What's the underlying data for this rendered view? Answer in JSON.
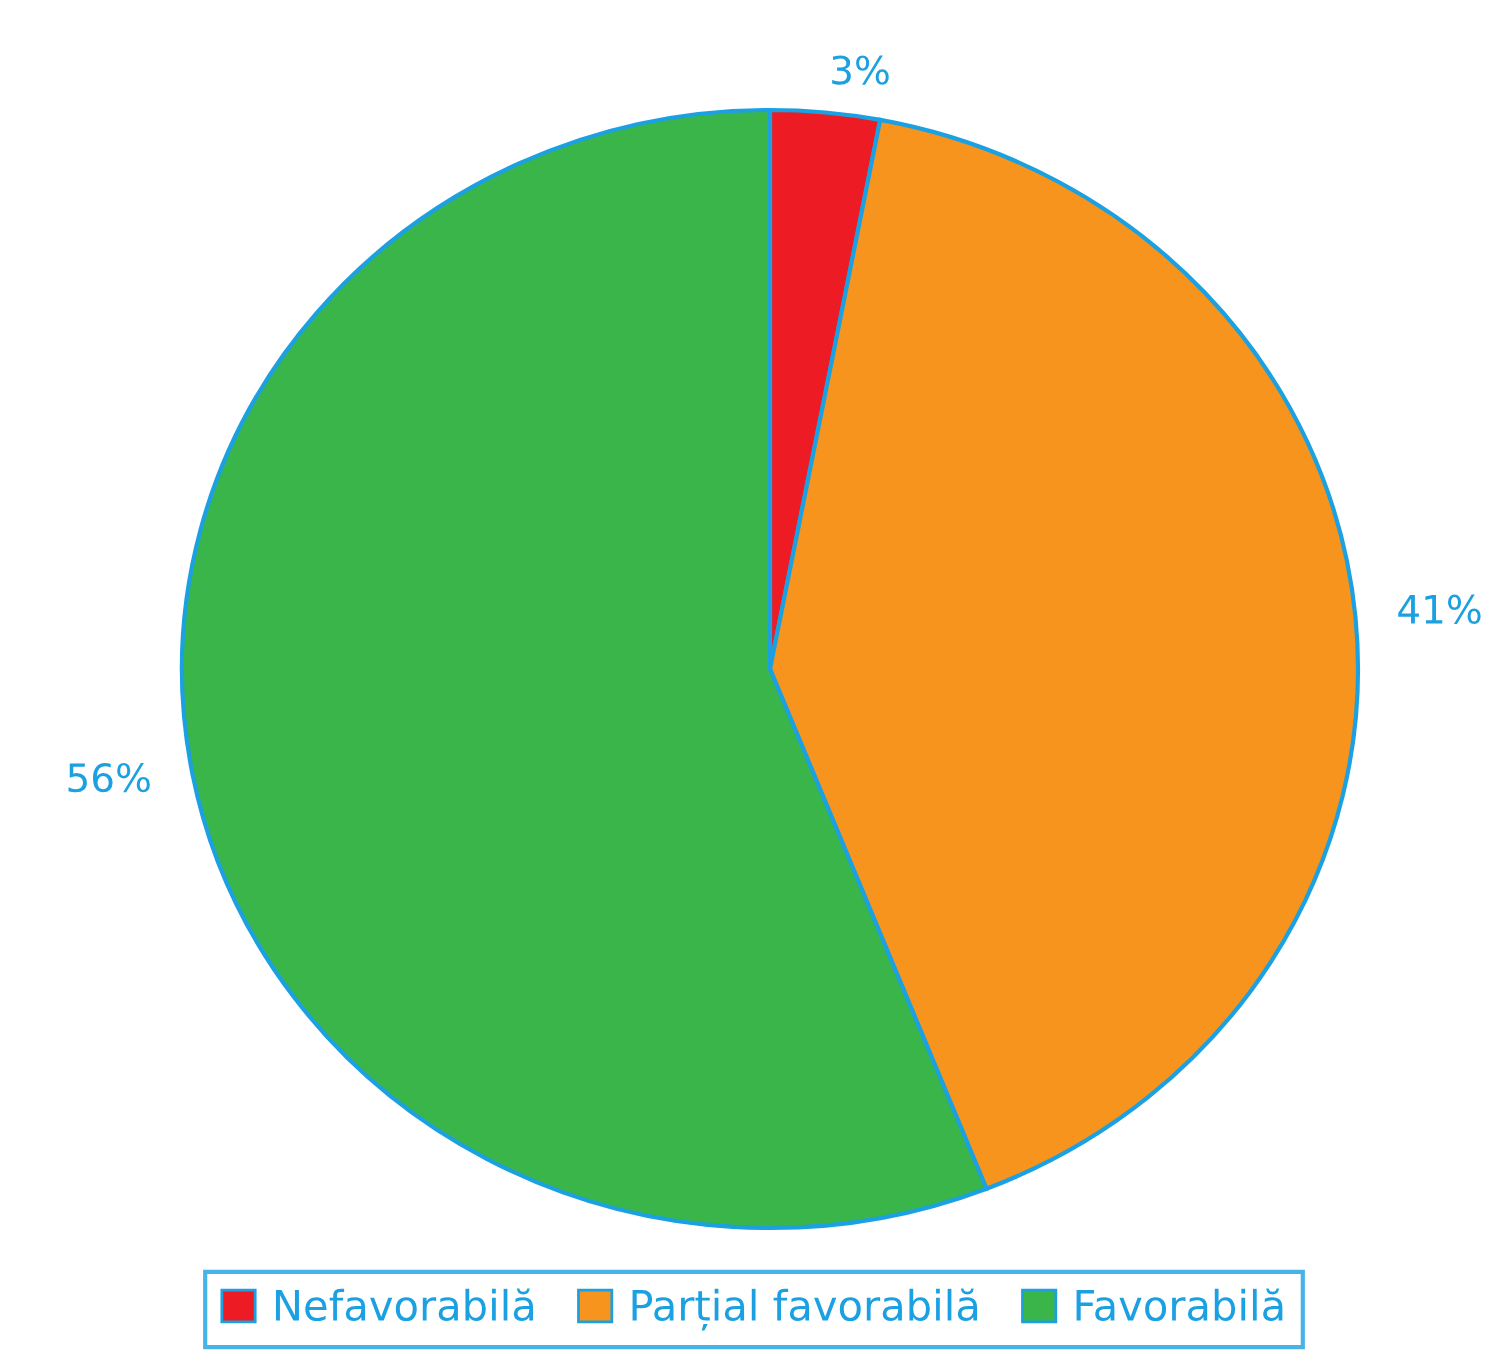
{
  "chart_data": {
    "type": "pie",
    "categories": [
      "Nefavorabilă",
      "Parțial favorabilă",
      "Favorabilă"
    ],
    "values": [
      3,
      41,
      56
    ],
    "colors": [
      "#ed1c24",
      "#f7941d",
      "#39b54a"
    ],
    "value_labels": [
      "3%",
      "41%",
      "56%"
    ],
    "legend": "bottom"
  }
}
